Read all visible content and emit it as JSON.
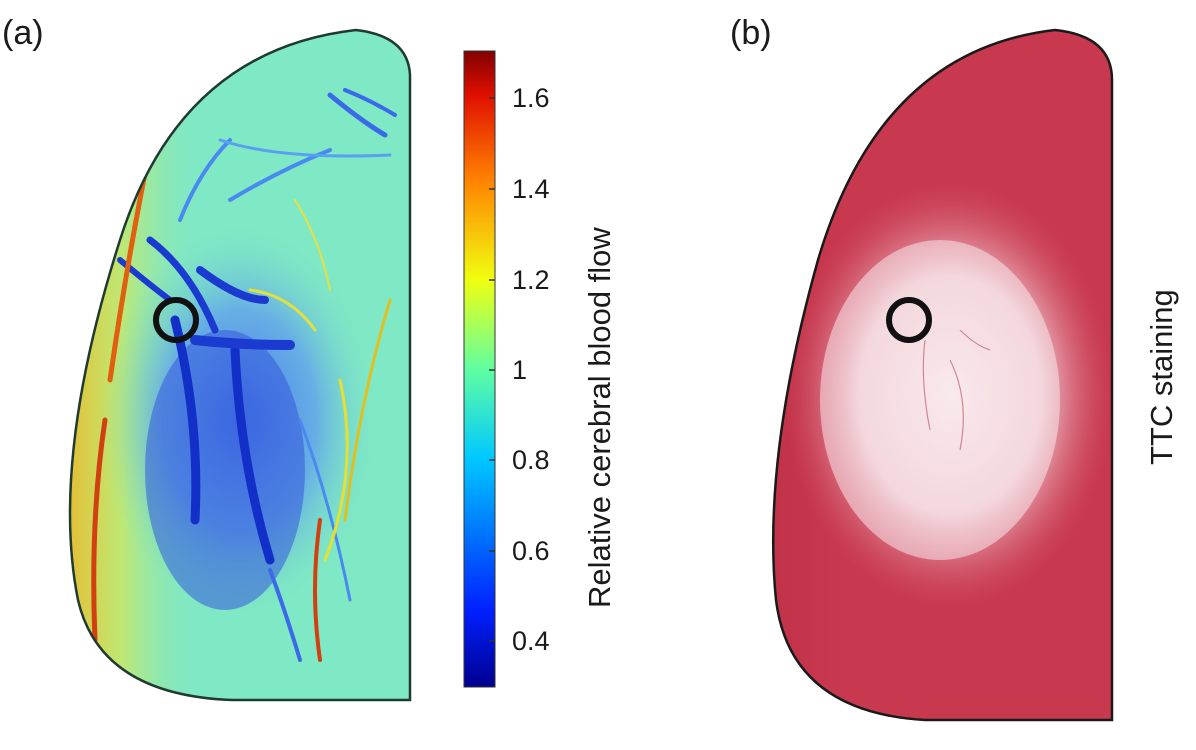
{
  "panels": {
    "a": {
      "label": "(a)"
    },
    "b": {
      "label": "(b)",
      "side_label": "TTC staining"
    }
  },
  "colorbar": {
    "title": "Relative cerebral blood flow",
    "colormap": "jet",
    "range": [
      0.3,
      1.7
    ],
    "ticks": [
      "1.6",
      "1.4",
      "1.2",
      "1",
      "0.8",
      "0.6",
      "0.4"
    ]
  },
  "colors": {
    "perfusion_background": "#7fe8c4",
    "ischemic_core": "#2a4fd6",
    "ttc_viable_tissue": "#c8384e",
    "ttc_infarct": "#f6e4e8",
    "marker_ring": "#111111"
  }
}
